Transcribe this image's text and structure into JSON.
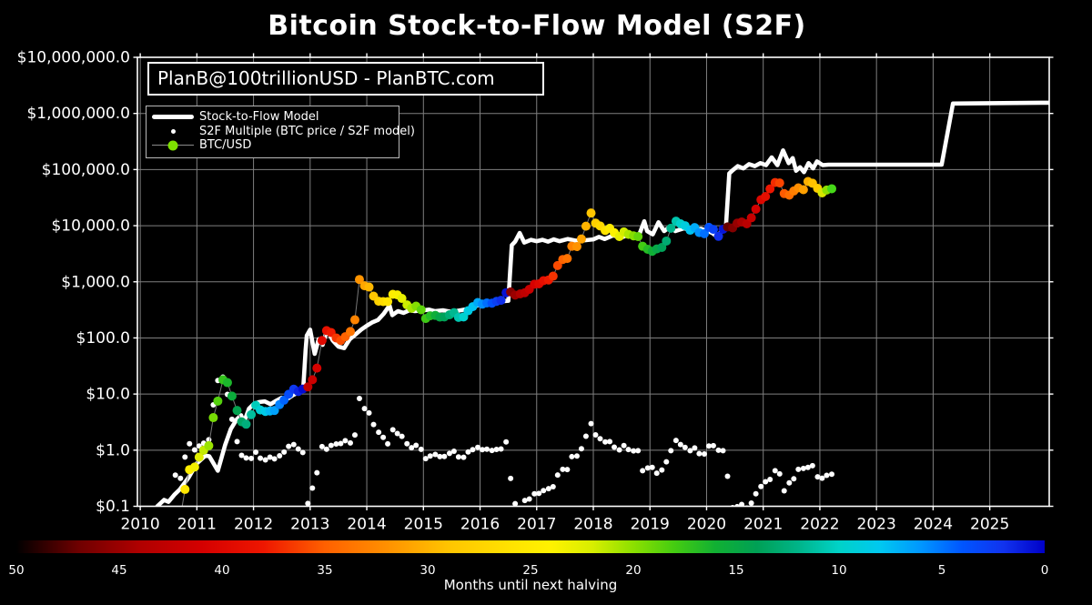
{
  "title": "Bitcoin Stock-to-Flow Model (S2F)",
  "watermark": "PlanB@100trillionUSD - PlanBTC.com",
  "legend": {
    "model_label": "Stock-to-Flow Model",
    "multiple_label": "S2F Multiple (BTC price / S2F model)",
    "btc_label": "BTC/USD",
    "btc_marker_color": "#7de000"
  },
  "colors": {
    "background": "#000000",
    "grid": "#7f7f7f",
    "spine": "#ffffff",
    "model_line": "#ffffff",
    "multiple_dot": "#ffffff",
    "btc_connector": "#777777"
  },
  "axes": {
    "y_tick_labels": [
      "$10,000,000.0",
      "$1,000,000.0",
      "$100,000.0",
      "$10,000.0",
      "$1,000.0",
      "$100.0",
      "$10.0",
      "$1.0",
      "$0.1"
    ],
    "y_tick_values": [
      10000000,
      1000000,
      100000,
      10000,
      1000,
      100,
      10,
      1,
      0.1
    ],
    "x_tick_labels": [
      "2010",
      "2011",
      "2012",
      "2013",
      "2014",
      "2015",
      "2016",
      "2017",
      "2018",
      "2019",
      "2020",
      "2021",
      "2022",
      "2023",
      "2024",
      "2025"
    ],
    "x_tick_values": [
      2010,
      2011,
      2012,
      2013,
      2014,
      2015,
      2016,
      2017,
      2018,
      2019,
      2020,
      2021,
      2022,
      2023,
      2024,
      2025
    ]
  },
  "colorbar": {
    "label": "Months until next halving",
    "tick_values": [
      50,
      45,
      40,
      35,
      30,
      25,
      20,
      15,
      10,
      5,
      0
    ],
    "range": [
      50,
      0
    ],
    "stops": [
      [
        50,
        "#000000"
      ],
      [
        47,
        "#6e0000"
      ],
      [
        44,
        "#b00000"
      ],
      [
        41,
        "#d40000"
      ],
      [
        38,
        "#ee1600"
      ],
      [
        35,
        "#ff6000"
      ],
      [
        32,
        "#ff9000"
      ],
      [
        29,
        "#ffc400"
      ],
      [
        26,
        "#ffe200"
      ],
      [
        24,
        "#fff200"
      ],
      [
        22,
        "#d8ee00"
      ],
      [
        20,
        "#8ce000"
      ],
      [
        18,
        "#44cc11"
      ],
      [
        16,
        "#11b033"
      ],
      [
        14,
        "#00a055"
      ],
      [
        12,
        "#00b488"
      ],
      [
        10,
        "#00d2c8"
      ],
      [
        8,
        "#00c8f0"
      ],
      [
        6,
        "#0096ff"
      ],
      [
        4,
        "#0055ff"
      ],
      [
        2,
        "#1133ee"
      ],
      [
        0,
        "#0000c8"
      ]
    ]
  },
  "chart_data": {
    "type": "line+scatter",
    "y_scale": "log",
    "x_range": [
      2009.95,
      2026.05
    ],
    "y_range": [
      0.1,
      10000000
    ],
    "grid": true,
    "legend_position": "upper-left",
    "halvings": [
      2012.908,
      2016.519,
      2020.362,
      2024.302
    ],
    "series": [
      {
        "name": "Stock-to-Flow Model",
        "style": "thick-white-line",
        "points": [
          [
            2010.3,
            0.1
          ],
          [
            2010.42,
            0.13
          ],
          [
            2010.5,
            0.12
          ],
          [
            2010.6,
            0.16
          ],
          [
            2010.7,
            0.2
          ],
          [
            2010.85,
            0.32
          ],
          [
            2011.0,
            0.58
          ],
          [
            2011.15,
            0.8
          ],
          [
            2011.22,
            0.78
          ],
          [
            2011.37,
            0.43
          ],
          [
            2011.5,
            1.25
          ],
          [
            2011.6,
            2.4
          ],
          [
            2011.7,
            3.5
          ],
          [
            2011.78,
            4.2
          ],
          [
            2011.83,
            3.1
          ],
          [
            2011.92,
            5.5
          ],
          [
            2012.0,
            6.6
          ],
          [
            2012.1,
            7.2
          ],
          [
            2012.2,
            7.4
          ],
          [
            2012.3,
            6.6
          ],
          [
            2012.4,
            7.6
          ],
          [
            2012.5,
            8.6
          ],
          [
            2012.6,
            8.2
          ],
          [
            2012.7,
            9.6
          ],
          [
            2012.8,
            10.7
          ],
          [
            2012.88,
            14.0
          ],
          [
            2012.92,
            60.0
          ],
          [
            2012.94,
            110
          ],
          [
            2013.0,
            140
          ],
          [
            2013.08,
            52
          ],
          [
            2013.15,
            95
          ],
          [
            2013.22,
            75
          ],
          [
            2013.3,
            140
          ],
          [
            2013.4,
            90
          ],
          [
            2013.5,
            70
          ],
          [
            2013.6,
            66
          ],
          [
            2013.7,
            95
          ],
          [
            2013.8,
            115
          ],
          [
            2013.9,
            140
          ],
          [
            2014.0,
            165
          ],
          [
            2014.1,
            190
          ],
          [
            2014.2,
            210
          ],
          [
            2014.3,
            270
          ],
          [
            2014.4,
            380
          ],
          [
            2014.45,
            255
          ],
          [
            2014.55,
            300
          ],
          [
            2014.65,
            280
          ],
          [
            2014.75,
            310
          ],
          [
            2014.85,
            300
          ],
          [
            2015.0,
            310
          ],
          [
            2015.1,
            320
          ],
          [
            2015.2,
            300
          ],
          [
            2015.35,
            310
          ],
          [
            2015.5,
            290
          ],
          [
            2015.65,
            310
          ],
          [
            2015.8,
            330
          ],
          [
            2015.95,
            380
          ],
          [
            2016.1,
            400
          ],
          [
            2016.25,
            430
          ],
          [
            2016.4,
            450
          ],
          [
            2016.5,
            460
          ],
          [
            2016.56,
            4500
          ],
          [
            2016.62,
            5200
          ],
          [
            2016.7,
            7400
          ],
          [
            2016.78,
            5000
          ],
          [
            2016.9,
            5600
          ],
          [
            2017.0,
            5300
          ],
          [
            2017.1,
            5600
          ],
          [
            2017.2,
            5200
          ],
          [
            2017.3,
            5700
          ],
          [
            2017.4,
            5300
          ],
          [
            2017.55,
            5800
          ],
          [
            2017.7,
            5400
          ],
          [
            2017.85,
            5500
          ],
          [
            2018.0,
            5700
          ],
          [
            2018.1,
            6300
          ],
          [
            2018.2,
            5800
          ],
          [
            2018.35,
            6700
          ],
          [
            2018.5,
            6200
          ],
          [
            2018.65,
            7000
          ],
          [
            2018.8,
            6500
          ],
          [
            2018.9,
            12000
          ],
          [
            2018.95,
            8000
          ],
          [
            2019.05,
            7000
          ],
          [
            2019.15,
            11500
          ],
          [
            2019.25,
            8000
          ],
          [
            2019.35,
            9500
          ],
          [
            2019.45,
            8000
          ],
          [
            2019.6,
            9000
          ],
          [
            2019.75,
            8300
          ],
          [
            2019.9,
            8800
          ],
          [
            2020.0,
            8200
          ],
          [
            2020.1,
            7400
          ],
          [
            2020.2,
            6200
          ],
          [
            2020.28,
            8800
          ],
          [
            2020.34,
            9000
          ],
          [
            2020.4,
            85000
          ],
          [
            2020.45,
            95000
          ],
          [
            2020.55,
            115000
          ],
          [
            2020.65,
            105000
          ],
          [
            2020.75,
            125000
          ],
          [
            2020.85,
            115000
          ],
          [
            2020.95,
            130000
          ],
          [
            2021.05,
            120000
          ],
          [
            2021.15,
            165000
          ],
          [
            2021.25,
            120000
          ],
          [
            2021.35,
            220000
          ],
          [
            2021.45,
            130000
          ],
          [
            2021.52,
            160000
          ],
          [
            2021.58,
            95000
          ],
          [
            2021.65,
            110000
          ],
          [
            2021.72,
            90000
          ],
          [
            2021.8,
            130000
          ],
          [
            2021.88,
            105000
          ],
          [
            2021.95,
            140000
          ],
          [
            2022.05,
            120000
          ],
          [
            2022.15,
            122000
          ],
          [
            2024.15,
            122000
          ],
          [
            2024.35,
            1500000
          ],
          [
            2026.05,
            1550000
          ]
        ]
      },
      {
        "name": "BTC/USD",
        "style": "colored-dots",
        "color_by": "months_until_next_halving",
        "points": [
          [
            2010.62,
            0.06
          ],
          [
            2010.71,
            0.065
          ],
          [
            2010.79,
            0.2
          ],
          [
            2010.87,
            0.45
          ],
          [
            2010.96,
            0.5
          ],
          [
            2011.04,
            0.75
          ],
          [
            2011.12,
            1.0
          ],
          [
            2011.21,
            1.2
          ],
          [
            2011.29,
            3.8
          ],
          [
            2011.37,
            7.5
          ],
          [
            2011.46,
            18.0
          ],
          [
            2011.54,
            16.0
          ],
          [
            2011.62,
            9.2
          ],
          [
            2011.71,
            5.1
          ],
          [
            2011.79,
            3.2
          ],
          [
            2011.87,
            2.9
          ],
          [
            2011.96,
            4.3
          ],
          [
            2012.04,
            6.3
          ],
          [
            2012.12,
            5.2
          ],
          [
            2012.21,
            4.9
          ],
          [
            2012.29,
            5.0
          ],
          [
            2012.37,
            5.1
          ],
          [
            2012.46,
            6.5
          ],
          [
            2012.54,
            7.8
          ],
          [
            2012.62,
            9.9
          ],
          [
            2012.71,
            12.2
          ],
          [
            2012.79,
            11.1
          ],
          [
            2012.87,
            12.3
          ],
          [
            2012.96,
            13.4
          ],
          [
            2013.04,
            18.0
          ],
          [
            2013.12,
            29.0
          ],
          [
            2013.21,
            90.0
          ],
          [
            2013.29,
            135
          ],
          [
            2013.37,
            125
          ],
          [
            2013.46,
            100
          ],
          [
            2013.54,
            90.0
          ],
          [
            2013.62,
            105
          ],
          [
            2013.71,
            130
          ],
          [
            2013.79,
            210
          ],
          [
            2013.87,
            1100
          ],
          [
            2013.96,
            850
          ],
          [
            2014.04,
            805
          ],
          [
            2014.12,
            555
          ],
          [
            2014.21,
            450
          ],
          [
            2014.29,
            445
          ],
          [
            2014.37,
            445
          ],
          [
            2014.46,
            598
          ],
          [
            2014.54,
            585
          ],
          [
            2014.62,
            505
          ],
          [
            2014.71,
            388
          ],
          [
            2014.79,
            338
          ],
          [
            2014.87,
            368
          ],
          [
            2014.96,
            318
          ],
          [
            2015.04,
            222
          ],
          [
            2015.12,
            248
          ],
          [
            2015.21,
            252
          ],
          [
            2015.29,
            235
          ],
          [
            2015.37,
            237
          ],
          [
            2015.46,
            258
          ],
          [
            2015.54,
            282
          ],
          [
            2015.62,
            232
          ],
          [
            2015.71,
            237
          ],
          [
            2015.79,
            305
          ],
          [
            2015.87,
            360
          ],
          [
            2015.96,
            428
          ],
          [
            2016.04,
            400
          ],
          [
            2016.12,
            420
          ],
          [
            2016.21,
            416
          ],
          [
            2016.29,
            448
          ],
          [
            2016.37,
            468
          ],
          [
            2016.46,
            640
          ],
          [
            2016.54,
            660
          ],
          [
            2016.62,
            580
          ],
          [
            2016.71,
            610
          ],
          [
            2016.79,
            640
          ],
          [
            2016.87,
            735
          ],
          [
            2016.96,
            905
          ],
          [
            2017.04,
            920
          ],
          [
            2017.12,
            1050
          ],
          [
            2017.21,
            1080
          ],
          [
            2017.29,
            1260
          ],
          [
            2017.37,
            1950
          ],
          [
            2017.46,
            2500
          ],
          [
            2017.54,
            2600
          ],
          [
            2017.62,
            4300
          ],
          [
            2017.71,
            4250
          ],
          [
            2017.79,
            5800
          ],
          [
            2017.87,
            9800
          ],
          [
            2017.96,
            16800
          ],
          [
            2018.04,
            11100
          ],
          [
            2018.12,
            9900
          ],
          [
            2018.21,
            8200
          ],
          [
            2018.29,
            9000
          ],
          [
            2018.37,
            7500
          ],
          [
            2018.46,
            6400
          ],
          [
            2018.54,
            7750
          ],
          [
            2018.62,
            7000
          ],
          [
            2018.71,
            6600
          ],
          [
            2018.79,
            6400
          ],
          [
            2018.87,
            4300
          ],
          [
            2018.96,
            3800
          ],
          [
            2019.04,
            3500
          ],
          [
            2019.12,
            3850
          ],
          [
            2019.21,
            4100
          ],
          [
            2019.29,
            5320
          ],
          [
            2019.37,
            9000
          ],
          [
            2019.46,
            12000
          ],
          [
            2019.54,
            10800
          ],
          [
            2019.62,
            10000
          ],
          [
            2019.71,
            8300
          ],
          [
            2019.79,
            9250
          ],
          [
            2019.87,
            7550
          ],
          [
            2019.96,
            7200
          ],
          [
            2020.04,
            9350
          ],
          [
            2020.12,
            8600
          ],
          [
            2020.21,
            6450
          ],
          [
            2020.29,
            8650
          ],
          [
            2020.37,
            9500
          ],
          [
            2020.46,
            9150
          ],
          [
            2020.54,
            11100
          ],
          [
            2020.62,
            11650
          ],
          [
            2020.71,
            10800
          ],
          [
            2020.79,
            13800
          ],
          [
            2020.87,
            19700
          ],
          [
            2020.96,
            29000
          ],
          [
            2021.04,
            33100
          ],
          [
            2021.12,
            45200
          ],
          [
            2021.21,
            58800
          ],
          [
            2021.29,
            57750
          ],
          [
            2021.37,
            37300
          ],
          [
            2021.46,
            35000
          ],
          [
            2021.54,
            41500
          ],
          [
            2021.62,
            47150
          ],
          [
            2021.71,
            43800
          ],
          [
            2021.79,
            61300
          ],
          [
            2021.87,
            57000
          ],
          [
            2021.96,
            46200
          ],
          [
            2022.04,
            38500,
            "#d9e800"
          ],
          [
            2022.12,
            43200,
            "#8fe000"
          ],
          [
            2022.21,
            45500,
            "#46d818"
          ]
        ]
      },
      {
        "name": "S2F Multiple (BTC price / S2F model)",
        "style": "small-white-dots",
        "points_rule": "BTC/USD price divided by Stock-to-Flow model value at the same date"
      }
    ]
  }
}
